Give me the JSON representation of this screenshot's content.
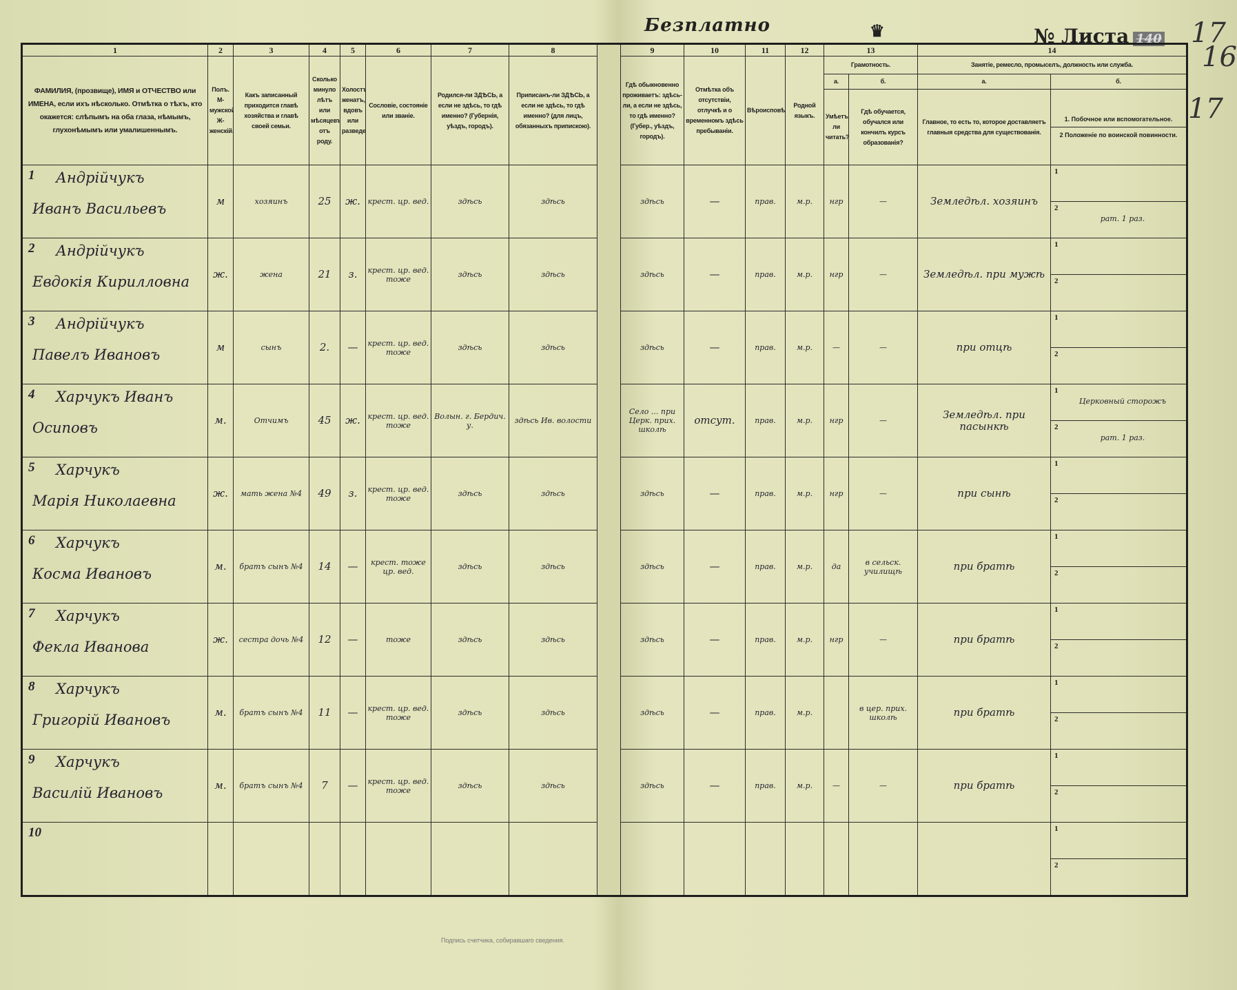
{
  "page": {
    "top_stamp": "Безплатно",
    "crown_mark": "♛",
    "sheet_label": "№ Листа",
    "sheet_value": "140",
    "margin_numbers": [
      "16",
      "17",
      "17"
    ],
    "bottom_print": "Подпись счетчика, собиравшаго сведения."
  },
  "colors": {
    "paper": "#dfe0b6",
    "ink": "#23232e",
    "print": "#1d1d1d"
  },
  "header": {
    "numbers": [
      "1",
      "2",
      "3",
      "4",
      "5",
      "6",
      "7",
      "8",
      "9",
      "10",
      "11",
      "12",
      "13",
      "14"
    ],
    "col1": "ФАМИЛИЯ, (прозвище), ИМЯ и ОТЧЕСТВО или ИМЕНА, если ихъ нѣсколько. Отмѣтка о тѣхъ, кто окажется: слѣпымъ на оба глаза, нѣмымъ, глухонѣмымъ или умалишеннымъ.",
    "col2": "Полъ. М-мужской. Ж-женскій.",
    "col3": "Какъ записанный приходится главѣ хозяйства и главѣ своей семьи.",
    "col4": "Сколько минуло лѣтъ или мѣсяцевъ отъ роду.",
    "col5": "Холостъ, женатъ, вдовъ или разведенъ.",
    "col6": "Сословіе, состояніе или званіе.",
    "col7": "Родился-ли ЗДѢСЬ, а если не здѣсь, то гдѣ именно? (Губернія, уѣздъ, городъ).",
    "col8": "Приписанъ-ли ЗДѢСЬ, а если не здѣсь, то гдѣ именно? (для лицъ, обязанныхъ припискою).",
    "col9": "Гдѣ обыкновенно проживаетъ: здѣсь-ли, а если не здѣсь, то гдѣ именно? (Губер., уѣздъ, городъ).",
    "col10": "Отмѣтка объ отсутствіи, отлучкѣ и о временномъ здѣсь пребываніи.",
    "col11": "Вѣроисповѣданіе.",
    "col12": "Родной языкъ.",
    "col13": "Грамотность.",
    "col13a_letter": "а.",
    "col13b_letter": "б.",
    "col13a": "Умѣетъ-ли читать?",
    "col13b": "Гдѣ обучается, обучался или кончилъ курсъ образованія?",
    "col14": "Занятіе, ремесло, промыселъ, должность или служба.",
    "col14a_letter": "а.",
    "col14b_letter": "б.",
    "col14a": "Главное, то есть то, которое доставляетъ главныя средства для существованія.",
    "col14b_1": "1. Побочное или вспомогательное.",
    "col14b_2": "2 Положеніе по воинской повинности."
  },
  "rows": [
    {
      "num": "1",
      "surname": "Андрійчукъ",
      "given": "Иванъ Васильевъ",
      "sex": "м",
      "relation": "хозяинъ",
      "age": "25",
      "marital": "ж.",
      "estate": "крест. цр. вед.",
      "born": "здѣсь",
      "registered": "здѣсь",
      "residence": "здѣсь",
      "absence": "—",
      "religion": "прав.",
      "language": "м.р.",
      "literate": "нгр",
      "school": "—",
      "occupation": "Земледѣл. хозяинъ",
      "secondary": "",
      "military": "рат. 1 раз."
    },
    {
      "num": "2",
      "surname": "Андрійчукъ",
      "given": "Евдокія Кирилловна",
      "sex": "ж.",
      "relation": "жена",
      "age": "21",
      "marital": "з.",
      "estate": "крест. цр. вед. тоже",
      "born": "здѣсь",
      "registered": "здѣсь",
      "residence": "здѣсь",
      "absence": "—",
      "religion": "прав.",
      "language": "м.р.",
      "literate": "нгр",
      "school": "—",
      "occupation": "Земледѣл. при мужѣ",
      "secondary": "",
      "military": ""
    },
    {
      "num": "3",
      "surname": "Андрійчукъ",
      "given": "Павелъ Ивановъ",
      "sex": "м",
      "relation": "сынъ",
      "age": "2.",
      "marital": "—",
      "estate": "крест. цр. вед. тоже",
      "born": "здѣсь",
      "registered": "здѣсь",
      "residence": "здѣсь",
      "absence": "—",
      "religion": "прав.",
      "language": "м.р.",
      "literate": "—",
      "school": "—",
      "occupation": "при отцѣ",
      "secondary": "",
      "military": ""
    },
    {
      "num": "4",
      "surname": "Харчукъ Иванъ",
      "given": "Осиповъ",
      "sex": "м.",
      "relation": "Отчимъ",
      "age": "45",
      "marital": "ж.",
      "estate": "крест. цр. вед. тоже",
      "born": "Волын. г. Бердич. у.",
      "registered": "здѣсь Ив. волости",
      "residence": "Село ... при Церк. прих. школѣ",
      "absence": "отсут.",
      "religion": "прав.",
      "language": "м.р.",
      "literate": "нгр",
      "school": "—",
      "occupation": "Земледѣл. при пасынкѣ",
      "secondary": "Церковный сторожъ",
      "military": "рат. 1 раз."
    },
    {
      "num": "5",
      "surname": "Харчукъ",
      "given": "Марія Николаевна",
      "sex": "ж.",
      "relation": "мать жена №4",
      "age": "49",
      "marital": "з.",
      "estate": "крест. цр. вед. тоже",
      "born": "здѣсь",
      "registered": "здѣсь",
      "residence": "здѣсь",
      "absence": "—",
      "religion": "прав.",
      "language": "м.р.",
      "literate": "нгр",
      "school": "—",
      "occupation": "при сынѣ",
      "secondary": "",
      "military": ""
    },
    {
      "num": "6",
      "surname": "Харчукъ",
      "given": "Косма Ивановъ",
      "sex": "м.",
      "relation": "братъ сынъ №4",
      "age": "14",
      "marital": "—",
      "estate": "крест. тоже цр. вед.",
      "born": "здѣсь",
      "registered": "здѣсь",
      "residence": "здѣсь",
      "absence": "—",
      "religion": "прав.",
      "language": "м.р.",
      "literate": "да",
      "school": "в сельск. училищѣ",
      "occupation": "при братѣ",
      "secondary": "",
      "military": ""
    },
    {
      "num": "7",
      "surname": "Харчукъ",
      "given": "Фекла Иванова",
      "sex": "ж.",
      "relation": "сестра дочь №4",
      "age": "12",
      "marital": "—",
      "estate": "тоже",
      "born": "здѣсь",
      "registered": "здѣсь",
      "residence": "здѣсь",
      "absence": "—",
      "religion": "прав.",
      "language": "м.р.",
      "literate": "нгр",
      "school": "—",
      "occupation": "при братѣ",
      "secondary": "",
      "military": ""
    },
    {
      "num": "8",
      "surname": "Харчукъ",
      "given": "Григорій Ивановъ",
      "sex": "м.",
      "relation": "братъ сынъ №4",
      "age": "11",
      "marital": "—",
      "estate": "крест. цр. вед. тоже",
      "born": "здѣсь",
      "registered": "здѣсь",
      "residence": "здѣсь",
      "absence": "—",
      "religion": "прав.",
      "language": "м.р.",
      "literate": "",
      "school": "в цер. прих. школѣ",
      "occupation": "при братѣ",
      "secondary": "",
      "military": ""
    },
    {
      "num": "9",
      "surname": "Харчукъ",
      "given": "Василій Ивановъ",
      "sex": "м.",
      "relation": "братъ сынъ №4",
      "age": "7",
      "marital": "—",
      "estate": "крест. цр. вед. тоже",
      "born": "здѣсь",
      "registered": "здѣсь",
      "residence": "здѣсь",
      "absence": "—",
      "religion": "прав.",
      "language": "м.р.",
      "literate": "—",
      "school": "—",
      "occupation": "при братѣ",
      "secondary": "",
      "military": ""
    },
    {
      "num": "10",
      "surname": "",
      "given": "",
      "sex": "",
      "relation": "",
      "age": "",
      "marital": "",
      "estate": "",
      "born": "",
      "registered": "",
      "residence": "",
      "absence": "",
      "religion": "",
      "language": "",
      "literate": "",
      "school": "",
      "occupation": "",
      "secondary": "",
      "military": ""
    }
  ]
}
